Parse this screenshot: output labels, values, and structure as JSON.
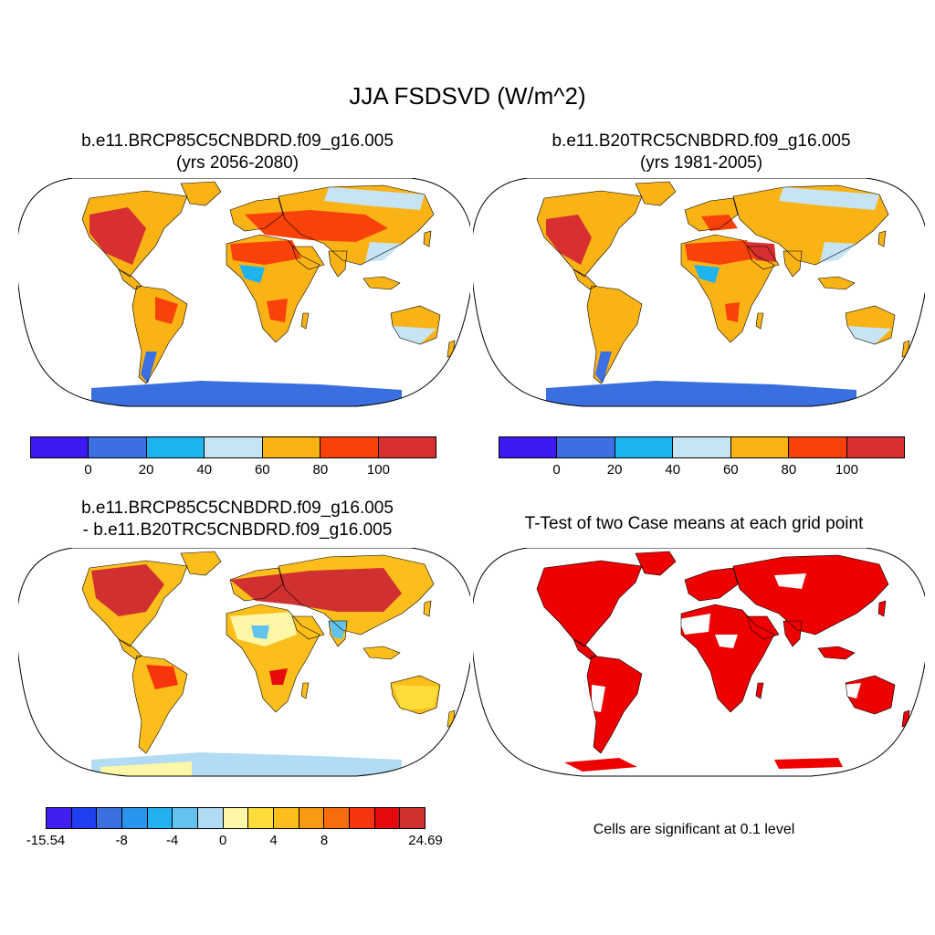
{
  "figure": {
    "title": "JJA FSDSVD (W/m^2)"
  },
  "panels": [
    {
      "line1": "b.e11.BRCP85C5CNBDRD.f09_g16.005",
      "line2": "(yrs 2056-2080)"
    },
    {
      "line1": "b.e11.B20TRC5CNBDRD.f09_g16.005",
      "line2": "(yrs 1981-2005)"
    },
    {
      "line1": "b.e11.BRCP85C5CNBDRD.f09_g16.005",
      "line2": "- b.e11.B20TRC5CNBDRD.f09_g16.005"
    },
    {
      "line1": "T-Test of two Case means at each grid point"
    }
  ],
  "colorbar_abs": {
    "labels": [
      "0",
      "20",
      "40",
      "60",
      "80",
      "100"
    ],
    "colors": [
      "#3a1af0",
      "#3b6fe2",
      "#1eb4f0",
      "#c6e4f4",
      "#f9b315",
      "#f9420a",
      "#d83030"
    ]
  },
  "colorbar_diff": {
    "labels": [
      "-15.54",
      "-8",
      "-4",
      "0",
      "4",
      "8",
      "24.69"
    ],
    "colors": [
      "#4020f0",
      "#1f3ff0",
      "#3a70e0",
      "#2a95ee",
      "#21b1f0",
      "#63c3ee",
      "#b1dcf3",
      "#fff7a8",
      "#fedc3a",
      "#fcbe1a",
      "#f89b12",
      "#f76d0c",
      "#f6350c",
      "#e60a0a",
      "#d03030"
    ]
  },
  "significance": {
    "color": "#ee0000",
    "note": "Cells are significant at 0.1 level"
  },
  "map_colors": {
    "antarctica_abs": "#3a6fe0",
    "antarctica_diff_a": "#b1dcf3",
    "antarctica_diff_b": "#fff7a8",
    "coast": "#000000"
  }
}
